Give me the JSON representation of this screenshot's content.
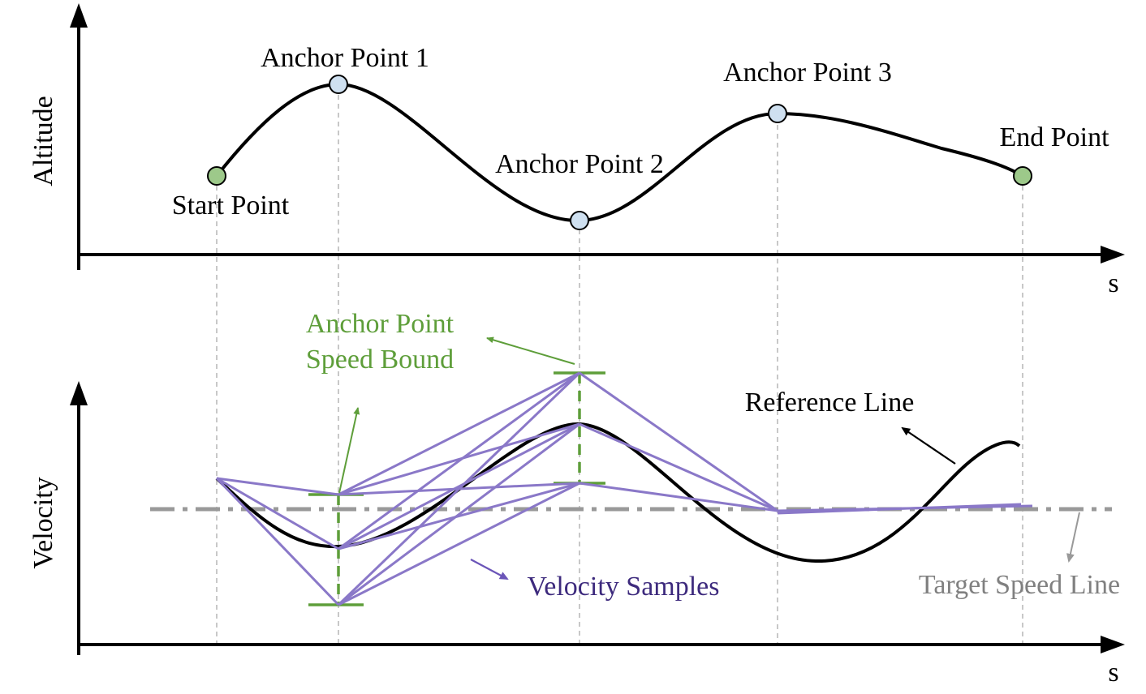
{
  "top_plot": {
    "y_label": "Altitude",
    "x_label": "s",
    "points": {
      "start": "Start Point",
      "anchor1": "Anchor Point 1",
      "anchor2": "Anchor Point 2",
      "anchor3": "Anchor Point 3",
      "end": "End Point"
    }
  },
  "bottom_plot": {
    "y_label": "Velocity",
    "x_label": "s",
    "annotations": {
      "speed_bound_line1": "Anchor Point",
      "speed_bound_line2": "Speed Bound",
      "reference_line": "Reference Line",
      "velocity_samples": "Velocity Samples",
      "target_speed_line": "Target Speed Line"
    }
  },
  "colors": {
    "curve": "#000000",
    "start_end_fill": "#9dc98a",
    "anchor_fill": "#cfe0f0",
    "speed_bound": "#5e9e3a",
    "samples": "#8a78c8",
    "samples_label": "#3d2a7d",
    "target_line": "#999999",
    "target_label": "#808080",
    "guide": "#bbbbbb"
  }
}
